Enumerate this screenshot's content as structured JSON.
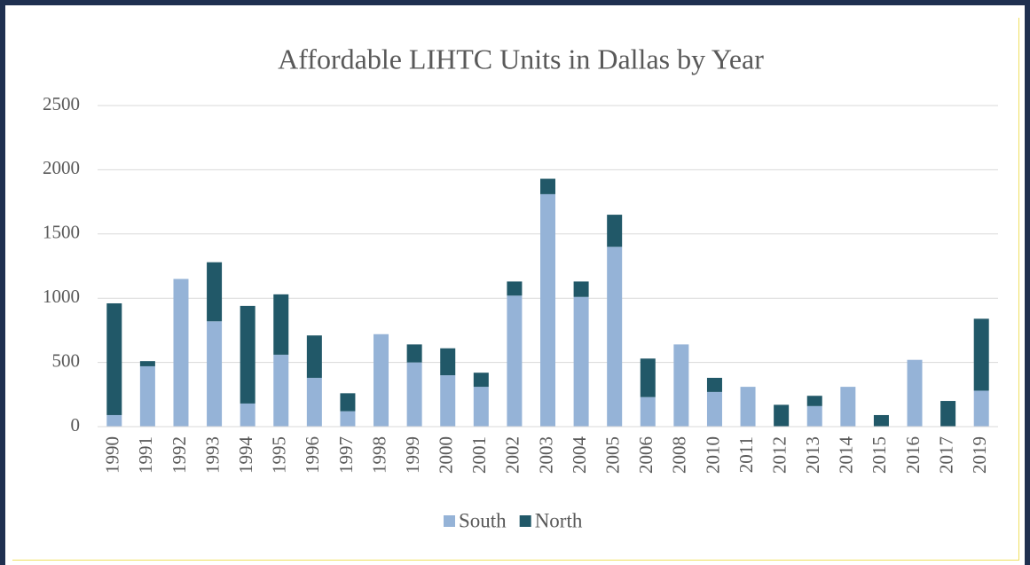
{
  "chart_data": {
    "type": "bar",
    "stacked": true,
    "title": "Affordable LIHTC Units in Dallas by Year",
    "categories": [
      "1990",
      "1991",
      "1992",
      "1993",
      "1994",
      "1995",
      "1996",
      "1997",
      "1998",
      "1999",
      "2000",
      "2001",
      "2002",
      "2003",
      "2004",
      "2005",
      "2006",
      "2008",
      "2010",
      "2011",
      "2012",
      "2013",
      "2014",
      "2015",
      "2016",
      "2017",
      "2019"
    ],
    "series": [
      {
        "name": "South",
        "color": "#95b3d7",
        "values": [
          90,
          470,
          1150,
          820,
          180,
          560,
          380,
          120,
          720,
          500,
          400,
          310,
          1020,
          1810,
          1010,
          1400,
          230,
          640,
          270,
          310,
          0,
          160,
          310,
          0,
          520,
          0,
          280
        ]
      },
      {
        "name": "North",
        "color": "#215868",
        "values": [
          870,
          40,
          0,
          460,
          760,
          470,
          330,
          140,
          0,
          140,
          210,
          110,
          110,
          120,
          120,
          250,
          300,
          0,
          110,
          0,
          170,
          80,
          0,
          90,
          0,
          200,
          560
        ]
      }
    ],
    "ylim": [
      0,
      2500
    ],
    "yticks": [
      0,
      500,
      1000,
      1500,
      2000,
      2500
    ],
    "grid": true,
    "legend": "bottom"
  }
}
